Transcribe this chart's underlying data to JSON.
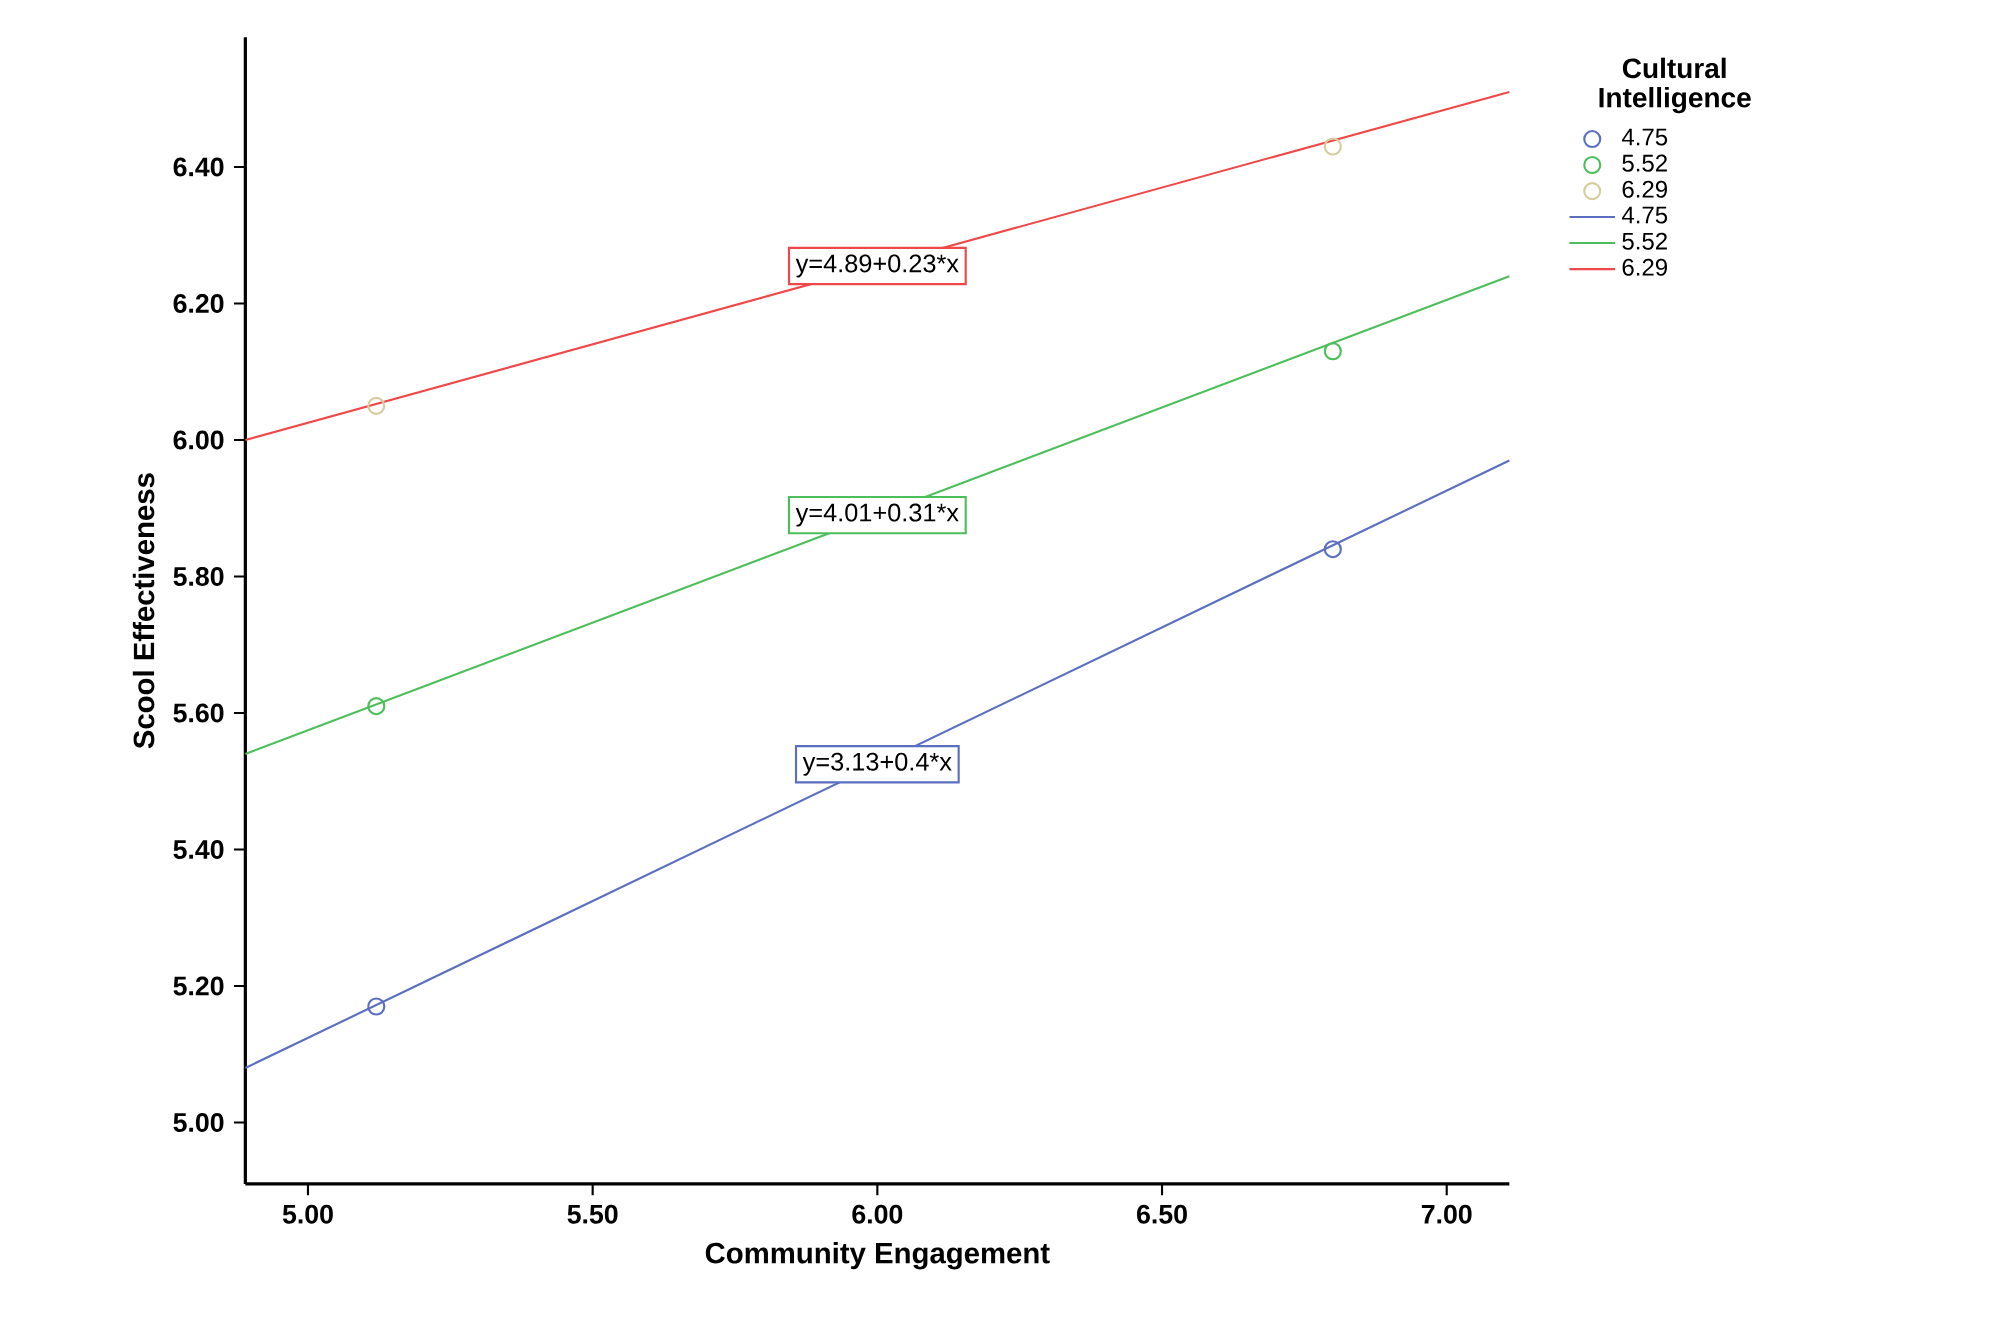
{
  "chart_data": {
    "type": "scatter",
    "xlabel": "Community Engagement",
    "ylabel": "Scool Effectiveness",
    "legend_title": "Cultural Intelligence",
    "legend": "top right",
    "xlim": [
      4.89,
      7.11
    ],
    "xticks": [
      {
        "value": 5,
        "label": "5.00"
      },
      {
        "value": 5.5,
        "label": "5.50"
      },
      {
        "value": 6,
        "label": "6.00"
      },
      {
        "value": 6.5,
        "label": "6.50"
      },
      {
        "value": 7,
        "label": "7.00"
      }
    ],
    "ylim": [
      4.91,
      6.59
    ],
    "yticks": [
      {
        "value": 5,
        "label": "5.00"
      },
      {
        "value": 5.2,
        "label": "5.20"
      },
      {
        "value": 5.4,
        "label": "5.40"
      },
      {
        "value": 5.6,
        "label": "5.60"
      },
      {
        "value": 5.8,
        "label": "5.80"
      },
      {
        "value": 6,
        "label": "6.00"
      },
      {
        "value": 6.2,
        "label": "6.20"
      },
      {
        "value": 6.4,
        "label": "6.40"
      }
    ],
    "series": [
      {
        "name": "4.75",
        "marker": "circle",
        "color": "#5a6fc0",
        "x": [
          5.12,
          6.8
        ],
        "values": [
          5.17,
          5.84
        ]
      },
      {
        "name": "5.52",
        "marker": "circle",
        "color": "#4dbf5a",
        "x": [
          5.12,
          6.8
        ],
        "values": [
          5.61,
          6.13
        ]
      },
      {
        "name": "6.29",
        "marker": "circle",
        "color": "#d6cd9e",
        "x": [
          5.12,
          6.8
        ],
        "values": [
          6.05,
          6.43
        ]
      },
      {
        "name": "4.75",
        "type": "line",
        "marker": "none",
        "color": "#5a6fc0",
        "x": [
          4.89,
          7.11
        ],
        "values": [
          5.08,
          5.97
        ]
      },
      {
        "name": "5.52",
        "type": "line",
        "marker": "none",
        "color": "#4dbf5a",
        "x": [
          4.89,
          7.11
        ],
        "values": [
          5.54,
          6.24
        ]
      },
      {
        "name": "6.29",
        "type": "line",
        "marker": "none",
        "color": "#f04848",
        "x": [
          4.89,
          7.11
        ],
        "values": [
          6.0,
          6.51
        ]
      }
    ],
    "annotations": [
      "y=3.13+0.4*x",
      "y=4.01+0.31*x",
      "y=4.89+0.23*x"
    ]
  }
}
